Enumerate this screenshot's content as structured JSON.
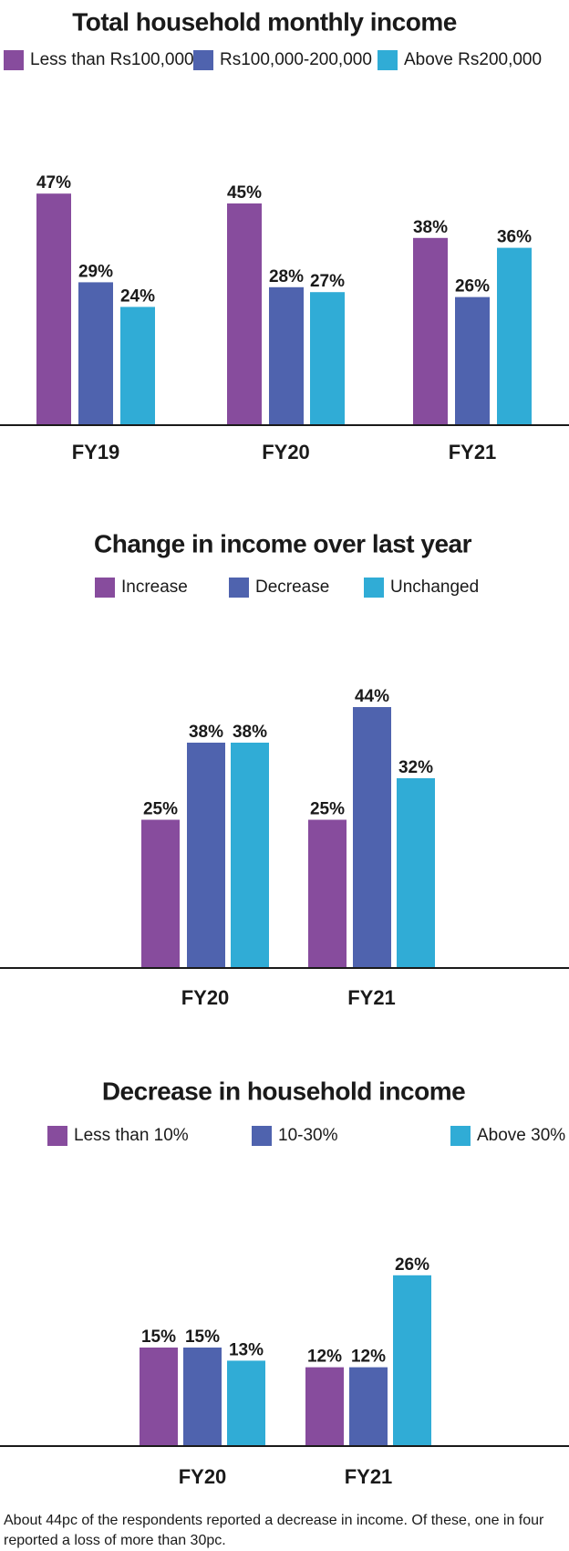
{
  "colors": {
    "purple": "#874c9d",
    "blue": "#4f63ae",
    "cyan": "#30acd6",
    "axis": "#1a1a1a"
  },
  "chart_data": [
    {
      "type": "bar",
      "title": "Total household monthly income",
      "categories": [
        "FY19",
        "FY20",
        "FY21"
      ],
      "series": [
        {
          "name": "Less than Rs100,000",
          "values": [
            47,
            45,
            38
          ],
          "labels": [
            "47%",
            "45%",
            "38%"
          ]
        },
        {
          "name": "Rs100,000-200,000",
          "values": [
            29,
            28,
            26
          ],
          "labels": [
            "29%",
            "28%",
            "26%"
          ]
        },
        {
          "name": "Above Rs200,000",
          "values": [
            24,
            27,
            36
          ],
          "labels": [
            "24%",
            "27%",
            "36%"
          ]
        }
      ],
      "unit": "%",
      "xlabel": "",
      "ylabel": "",
      "ylim": [
        0,
        50
      ],
      "grid": false,
      "legend": "top"
    },
    {
      "type": "bar",
      "title": "Change in income over last year",
      "categories": [
        "FY20",
        "FY21"
      ],
      "series": [
        {
          "name": "Increase",
          "values": [
            25,
            25
          ],
          "labels": [
            "25%",
            "25%"
          ]
        },
        {
          "name": "Decrease",
          "values": [
            38,
            44
          ],
          "labels": [
            "38%",
            "44%"
          ]
        },
        {
          "name": "Unchanged",
          "values": [
            38,
            32
          ],
          "labels": [
            "38%",
            "32%"
          ]
        }
      ],
      "unit": "%",
      "xlabel": "",
      "ylabel": "",
      "ylim": [
        0,
        50
      ],
      "grid": false,
      "legend": "top"
    },
    {
      "type": "bar",
      "title": "Decrease in household income",
      "categories": [
        "FY20",
        "FY21"
      ],
      "series": [
        {
          "name": "Less than 10%",
          "values": [
            15,
            12
          ],
          "labels": [
            "15%",
            "12%"
          ]
        },
        {
          "name": "10-30%",
          "values": [
            15,
            12
          ],
          "labels": [
            "15%",
            "12%"
          ]
        },
        {
          "name": "Above 30%",
          "values": [
            13,
            26
          ],
          "labels": [
            "13%",
            "26%"
          ]
        }
      ],
      "unit": "%",
      "xlabel": "",
      "ylabel": "",
      "ylim": [
        0,
        30
      ],
      "grid": false,
      "legend": "top"
    }
  ],
  "caption": "About 44pc of the respondents reported a decrease in income. Of these, one in four reported a loss of more than 30pc."
}
